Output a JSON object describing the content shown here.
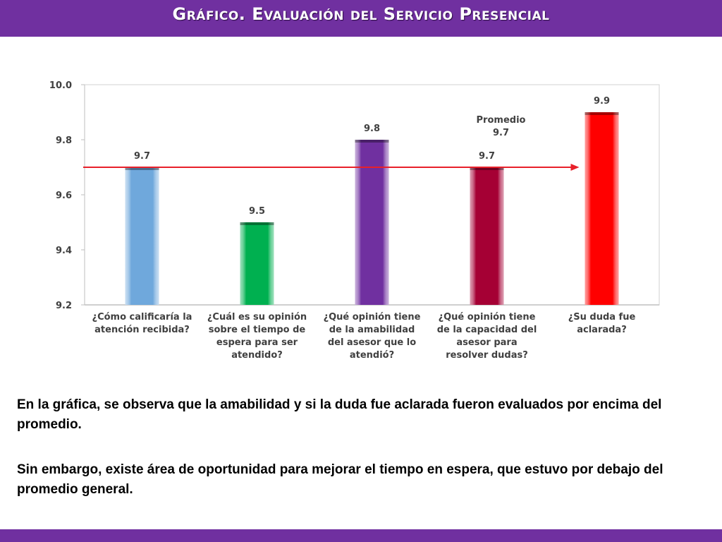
{
  "header": {
    "title": "Gráfico. Evaluación del Servicio Presencial"
  },
  "colors": {
    "accent": "#7030a0",
    "average_line": "#e8202a"
  },
  "chart_data": {
    "type": "bar",
    "ylim": [
      9.2,
      10.0
    ],
    "yticks": [
      "9.2",
      "9.4",
      "9.6",
      "9.8",
      "10.0"
    ],
    "categories": [
      [
        "¿Cómo calificaría la",
        "atención recibida?"
      ],
      [
        "¿Cuál es su opinión",
        "sobre el tiempo de",
        "espera para ser",
        "atendido?"
      ],
      [
        "¿Qué opinión tiene",
        "de la amabilidad",
        "del asesor que lo",
        "atendió?"
      ],
      [
        "¿Qué opinión tiene",
        "de la capacidad del",
        "asesor para",
        "resolver dudas?"
      ],
      [
        "¿Su duda fue",
        "aclarada?"
      ]
    ],
    "values": [
      9.7,
      9.5,
      9.8,
      9.7,
      9.9
    ],
    "value_labels": [
      "9.7",
      "9.5",
      "9.8",
      "9.7",
      "9.9"
    ],
    "bar_colors": [
      "#6fa8dc",
      "#00b050",
      "#7030a0",
      "#a50034",
      "#ff0000"
    ],
    "average": {
      "value": 9.7,
      "label": "Promedio",
      "value_label": "9.7"
    },
    "grid": false
  },
  "text": {
    "paragraph1": "En la gráfica, se observa que la amabilidad y si la duda fue aclarada fueron evaluados por encima del promedio.",
    "paragraph2": "Sin embargo, existe área de oportunidad para mejorar el tiempo en espera, que estuvo por debajo del promedio general."
  }
}
